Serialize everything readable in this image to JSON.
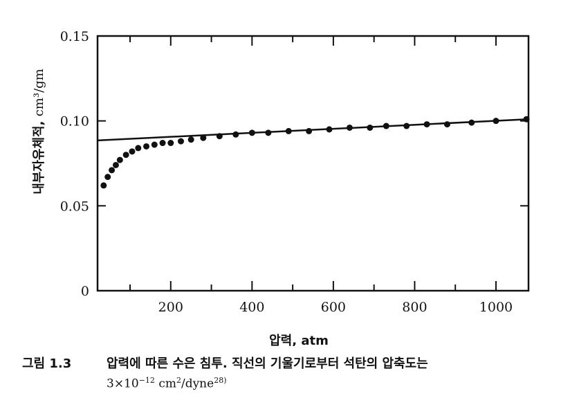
{
  "chart_data": {
    "type": "scatter",
    "xlabel": "압력, atm",
    "ylabel_text": "내부자유체적, ",
    "ylabel_unit": "cm³/gm",
    "xlim": [
      20,
      1080
    ],
    "ylim": [
      0,
      0.15
    ],
    "x_ticks": [
      200,
      400,
      600,
      800,
      1000
    ],
    "y_ticks": [
      {
        "value": 0,
        "label": "0"
      },
      {
        "value": 0.05,
        "label": "0.05"
      },
      {
        "value": 0.1,
        "label": "0.10"
      },
      {
        "value": 0.15,
        "label": "0.15"
      }
    ],
    "grid": false,
    "series": [
      {
        "values": [
          [
            35,
            0.062
          ],
          [
            45,
            0.067
          ],
          [
            55,
            0.071
          ],
          [
            65,
            0.074
          ],
          [
            75,
            0.077
          ],
          [
            90,
            0.08
          ],
          [
            105,
            0.082
          ],
          [
            120,
            0.084
          ],
          [
            140,
            0.085
          ],
          [
            160,
            0.086
          ],
          [
            180,
            0.087
          ],
          [
            200,
            0.087
          ],
          [
            225,
            0.088
          ],
          [
            250,
            0.089
          ],
          [
            280,
            0.09
          ],
          [
            320,
            0.091
          ],
          [
            360,
            0.092
          ],
          [
            400,
            0.093
          ],
          [
            440,
            0.093
          ],
          [
            490,
            0.094
          ],
          [
            540,
            0.094
          ],
          [
            590,
            0.095
          ],
          [
            640,
            0.096
          ],
          [
            690,
            0.096
          ],
          [
            730,
            0.097
          ],
          [
            780,
            0.097
          ],
          [
            830,
            0.098
          ],
          [
            880,
            0.098
          ],
          [
            940,
            0.099
          ],
          [
            1000,
            0.1
          ],
          [
            1075,
            0.101
          ]
        ]
      }
    ],
    "fit_line": {
      "x": [
        20,
        1080
      ],
      "y": [
        0.0885,
        0.101
      ]
    }
  },
  "caption": {
    "figure_number": "그림 1.3",
    "line1": "압력에 따른 수은 침투. 직선의 기울기로부터 석탄의 압축도는",
    "line2_base": "3×10",
    "line2_exp": "−12",
    "line2_unit": " cm",
    "line2_unit_exp": "2",
    "line2_tail": "/dyne",
    "line2_ref": "28)"
  }
}
